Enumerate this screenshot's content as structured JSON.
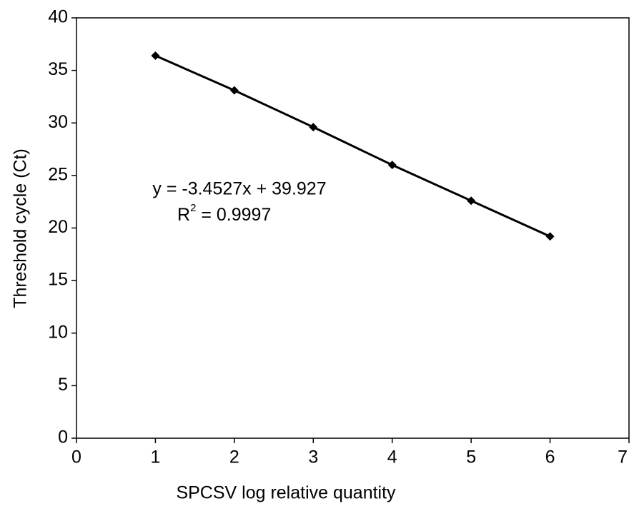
{
  "chart_data": {
    "type": "scatter",
    "x_label": "SPCSV log relative quantity",
    "y_label": "Threshold cycle (Ct)",
    "x": [
      1,
      2,
      3,
      4,
      5,
      6
    ],
    "values": [
      36.4,
      33.1,
      29.6,
      26.0,
      22.6,
      19.2
    ],
    "color": "#000000",
    "xlim": [
      0,
      7
    ],
    "xticks": [
      0,
      1,
      2,
      3,
      4,
      5,
      6,
      7
    ],
    "ylim": [
      0,
      40
    ],
    "yticks": [
      0,
      5,
      10,
      15,
      20,
      25,
      30,
      35,
      40
    ],
    "grid": false,
    "equation": "y = -3.4527x + 39.927",
    "r2_label": {
      "base": "R",
      "sup": "2",
      "rest": " = 0.9997"
    }
  }
}
